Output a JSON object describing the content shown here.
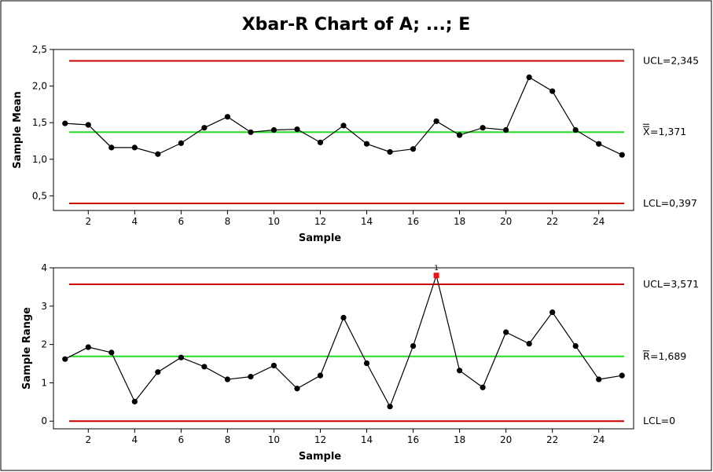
{
  "chart_data": {
    "type": "line",
    "title": "Xbar-R Chart of A; ...; E",
    "charts": [
      {
        "id": "xbar",
        "ylabel": "Sample Mean",
        "xlabel": "Sample",
        "ylim": [
          0.3,
          2.5
        ],
        "xlim": [
          0.5,
          25.5
        ],
        "yticks": [
          0.5,
          1.0,
          1.5,
          2.0,
          2.5
        ],
        "ytick_labels": [
          "0,5",
          "1,0",
          "1,5",
          "2,0",
          "2,5"
        ],
        "xticks": [
          2,
          4,
          6,
          8,
          10,
          12,
          14,
          16,
          18,
          20,
          22,
          24
        ],
        "xtick_labels": [
          "2",
          "4",
          "6",
          "8",
          "10",
          "12",
          "14",
          "16",
          "18",
          "20",
          "22",
          "24"
        ],
        "x": [
          1,
          2,
          3,
          4,
          5,
          6,
          7,
          8,
          9,
          10,
          11,
          12,
          13,
          14,
          15,
          16,
          17,
          18,
          19,
          20,
          21,
          22,
          23,
          24,
          25
        ],
        "values": [
          1.49,
          1.47,
          1.16,
          1.16,
          1.07,
          1.22,
          1.43,
          1.58,
          1.37,
          1.4,
          1.41,
          1.23,
          1.46,
          1.21,
          1.1,
          1.14,
          1.52,
          1.33,
          1.43,
          1.4,
          2.12,
          1.93,
          1.4,
          1.21,
          1.06
        ],
        "ucl": 2.345,
        "center": 1.371,
        "lcl": 0.397,
        "ucl_label": "UCL=2,345",
        "center_label_symbol": "X",
        "center_label_value": "=1,371",
        "lcl_label": "LCL=0,397",
        "out_of_control": []
      },
      {
        "id": "range",
        "ylabel": "Sample Range",
        "xlabel": "Sample",
        "ylim": [
          -0.2,
          4.0
        ],
        "xlim": [
          0.5,
          25.5
        ],
        "yticks": [
          0,
          1,
          2,
          3,
          4
        ],
        "ytick_labels": [
          "0",
          "1",
          "2",
          "3",
          "4"
        ],
        "xticks": [
          2,
          4,
          6,
          8,
          10,
          12,
          14,
          16,
          18,
          20,
          22,
          24
        ],
        "xtick_labels": [
          "2",
          "4",
          "6",
          "8",
          "10",
          "12",
          "14",
          "16",
          "18",
          "20",
          "22",
          "24"
        ],
        "x": [
          1,
          2,
          3,
          4,
          5,
          6,
          7,
          8,
          9,
          10,
          11,
          12,
          13,
          14,
          15,
          16,
          17,
          18,
          19,
          20,
          21,
          22,
          23,
          24,
          25
        ],
        "values": [
          1.62,
          1.93,
          1.79,
          0.51,
          1.28,
          1.66,
          1.42,
          1.09,
          1.16,
          1.45,
          0.85,
          1.19,
          2.7,
          1.51,
          0.38,
          1.96,
          3.8,
          1.32,
          0.88,
          2.32,
          2.02,
          2.84,
          1.96,
          1.09,
          1.19
        ],
        "ucl": 3.571,
        "center": 1.689,
        "lcl": 0,
        "ucl_label": "UCL=3,571",
        "center_label_symbol": "R",
        "center_label_value": "=1,689",
        "lcl_label": "LCL=0",
        "out_of_control": [
          {
            "x": 17,
            "flag": "1"
          }
        ]
      }
    ],
    "colors": {
      "limits": "#cc0000",
      "center": "#22dd22",
      "series": "#000000",
      "out_of_control": "#ee1111"
    }
  }
}
